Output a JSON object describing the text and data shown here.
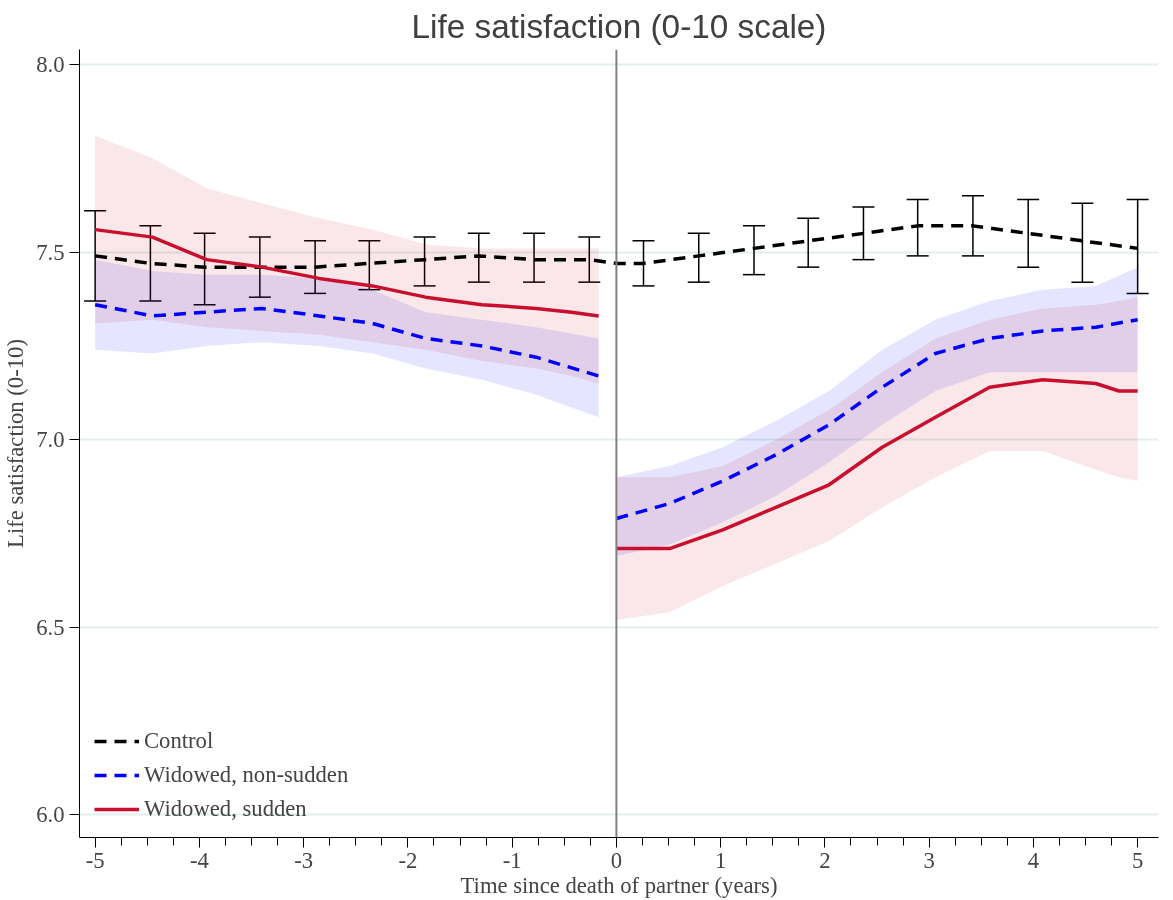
{
  "chart_data": {
    "type": "line",
    "title": "Life satisfaction (0-10 scale)",
    "xlabel": "Time since death of partner (years)",
    "ylabel": "Life satisfaction (0-10)",
    "xlim": [
      -5.15,
      5.2
    ],
    "ylim": [
      5.94,
      8.04
    ],
    "xticks": [
      -5,
      {
        "value": -4.75,
        "label": null
      },
      {
        "value": -4.5,
        "label": null
      },
      {
        "value": -4.25,
        "label": null
      },
      -4,
      {
        "value": -3.75,
        "label": null
      },
      {
        "value": -3.5,
        "label": null
      },
      {
        "value": -3.25,
        "label": null
      },
      -3,
      {
        "value": -2.75,
        "label": null
      },
      {
        "value": -2.5,
        "label": null
      },
      {
        "value": -2.25,
        "label": null
      },
      -2,
      {
        "value": -1.75,
        "label": null
      },
      {
        "value": -1.5,
        "label": null
      },
      {
        "value": -1.25,
        "label": null
      },
      -1,
      {
        "value": -0.75,
        "label": null
      },
      {
        "value": -0.5,
        "label": null
      },
      {
        "value": -0.25,
        "label": null
      },
      0,
      {
        "value": 0.25,
        "label": null
      },
      {
        "value": 0.5,
        "label": null
      },
      {
        "value": 0.75,
        "label": null
      },
      1,
      {
        "value": 1.25,
        "label": null
      },
      {
        "value": 1.5,
        "label": null
      },
      {
        "value": 1.75,
        "label": null
      },
      2,
      {
        "value": 2.25,
        "label": null
      },
      {
        "value": 2.5,
        "label": null
      },
      {
        "value": 2.75,
        "label": null
      },
      3,
      {
        "value": 3.25,
        "label": null
      },
      {
        "value": 3.5,
        "label": null
      },
      {
        "value": 3.75,
        "label": null
      },
      4,
      {
        "value": 4.25,
        "label": null
      },
      {
        "value": 4.5,
        "label": null
      },
      {
        "value": 4.75,
        "label": null
      },
      5
    ],
    "yticks": [
      {
        "value": 6.0,
        "label": "6.0"
      },
      6.5,
      {
        "value": 7.0,
        "label": "7.0"
      },
      7.5,
      {
        "value": 8.0,
        "label": "8.0"
      }
    ],
    "grid": "y",
    "legend": "bottom left",
    "ref_lines": [
      {
        "axis": "x",
        "value": 0,
        "color": "#808080"
      }
    ],
    "series": [
      {
        "name": "Control",
        "color": "#000000",
        "line_style": "dashed",
        "x": [
          -5,
          -4.47,
          -3.95,
          -3.42,
          -2.89,
          -2.37,
          -1.84,
          -1.32,
          -0.79,
          -0.26,
          0,
          0.26,
          0.79,
          1.32,
          1.84,
          2.37,
          2.89,
          3.42,
          3.95,
          4.47,
          5
        ],
        "values": [
          7.49,
          7.47,
          7.46,
          7.46,
          7.46,
          7.47,
          7.48,
          7.49,
          7.48,
          7.48,
          7.47,
          7.47,
          7.49,
          7.51,
          7.53,
          7.55,
          7.57,
          7.57,
          7.55,
          7.53,
          7.51
        ],
        "errors": [
          [
            7.37,
            7.61
          ],
          [
            7.37,
            7.57
          ],
          [
            7.36,
            7.55
          ],
          [
            7.38,
            7.54
          ],
          [
            7.39,
            7.53
          ],
          [
            7.4,
            7.53
          ],
          [
            7.41,
            7.54
          ],
          [
            7.42,
            7.55
          ],
          [
            7.42,
            7.55
          ],
          [
            7.42,
            7.54
          ],
          null,
          [
            7.41,
            7.53
          ],
          [
            7.42,
            7.55
          ],
          [
            7.44,
            7.57
          ],
          [
            7.46,
            7.59
          ],
          [
            7.48,
            7.62
          ],
          [
            7.49,
            7.64
          ],
          [
            7.49,
            7.65
          ],
          [
            7.46,
            7.64
          ],
          [
            7.42,
            7.63
          ],
          [
            7.39,
            7.64
          ]
        ]
      },
      {
        "name": "Widowed, non-sudden",
        "color": "#0000ff",
        "line_style": "dashed",
        "x": [
          -5,
          -4.45,
          -3.93,
          -3.4,
          -2.85,
          -2.34,
          -1.83,
          -1.29,
          -0.77,
          -0.17
        ],
        "values": [
          7.36,
          7.33,
          7.34,
          7.35,
          7.33,
          7.31,
          7.27,
          7.25,
          7.22,
          7.17
        ],
        "lower": [
          7.24,
          7.23,
          7.25,
          7.26,
          7.25,
          7.23,
          7.19,
          7.16,
          7.12,
          7.06
        ],
        "upper": [
          7.48,
          7.45,
          7.44,
          7.44,
          7.43,
          7.4,
          7.34,
          7.32,
          7.3,
          7.27
        ]
      },
      {
        "color": "#0000ff",
        "line_style": "dashed",
        "x": [
          0,
          0.51,
          1.02,
          1.53,
          2.04,
          2.55,
          3.06,
          3.58,
          4.09,
          4.6,
          5
        ],
        "values": [
          6.79,
          6.83,
          6.89,
          6.96,
          7.04,
          7.14,
          7.23,
          7.27,
          7.29,
          7.3,
          7.32
        ],
        "lower": [
          6.69,
          6.72,
          6.78,
          6.85,
          6.94,
          7.04,
          7.13,
          7.18,
          7.18,
          7.18,
          7.18
        ],
        "upper": [
          6.9,
          6.93,
          6.98,
          7.05,
          7.13,
          7.24,
          7.32,
          7.37,
          7.4,
          7.41,
          7.46
        ]
      },
      {
        "name": "Widowed, sudden",
        "color": "#c8102e",
        "line_style": "solid",
        "x": [
          -5,
          -4.45,
          -3.93,
          -3.4,
          -2.85,
          -2.34,
          -1.83,
          -1.29,
          -0.77,
          -0.43,
          -0.17
        ],
        "values": [
          7.56,
          7.54,
          7.48,
          7.46,
          7.43,
          7.41,
          7.38,
          7.36,
          7.35,
          7.34,
          7.33
        ],
        "lower": [
          7.31,
          7.32,
          7.3,
          7.29,
          7.28,
          7.26,
          7.24,
          7.21,
          7.19,
          7.17,
          7.15
        ],
        "upper": [
          7.81,
          7.75,
          7.67,
          7.63,
          7.59,
          7.56,
          7.52,
          7.51,
          7.51,
          7.51,
          7.51
        ]
      },
      {
        "color": "#c8102e",
        "line_style": "solid",
        "x": [
          0,
          0.51,
          1.02,
          1.53,
          2.04,
          2.55,
          3.06,
          3.58,
          4.09,
          4.6,
          4.82,
          5
        ],
        "values": [
          6.71,
          6.71,
          6.76,
          6.82,
          6.88,
          6.98,
          7.06,
          7.14,
          7.16,
          7.15,
          7.13,
          7.13
        ],
        "lower": [
          6.52,
          6.54,
          6.61,
          6.67,
          6.73,
          6.82,
          6.9,
          6.97,
          6.97,
          6.92,
          6.9,
          6.89
        ],
        "upper": [
          6.9,
          6.9,
          6.93,
          7.0,
          7.08,
          7.18,
          7.27,
          7.32,
          7.35,
          7.36,
          7.37,
          7.38
        ]
      }
    ]
  }
}
